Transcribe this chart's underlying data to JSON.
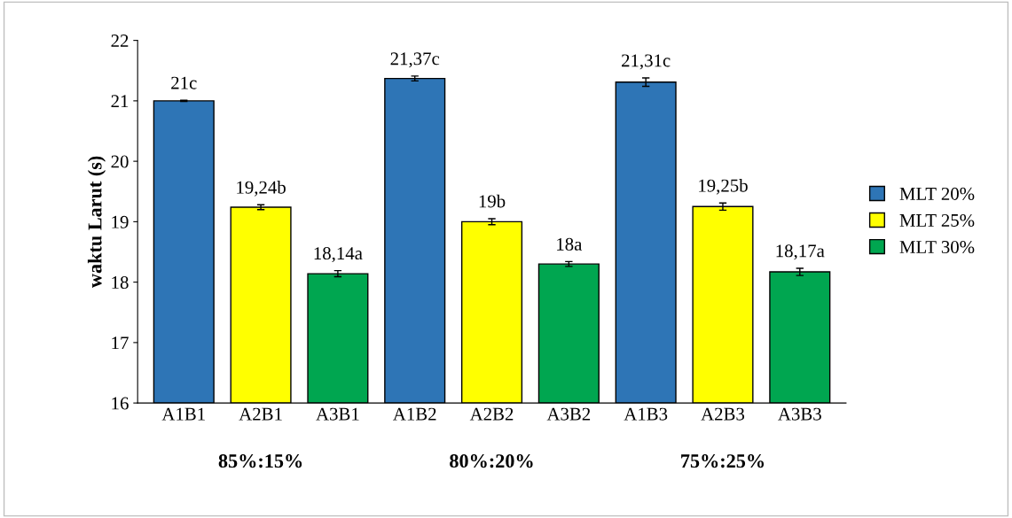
{
  "chart_data": {
    "type": "bar",
    "ylabel": "waktu Larut (s)",
    "categories": [
      "A1B1",
      "A2B1",
      "A3B1",
      "A1B2",
      "A2B2",
      "A3B2",
      "A1B3",
      "A2B3",
      "A3B3"
    ],
    "series": [
      {
        "name": "MLT 20%",
        "color": "#2e75b6",
        "values": [
          21,
          null,
          null,
          21.37,
          null,
          null,
          21.31,
          null,
          null
        ],
        "errors": [
          0.01,
          null,
          null,
          0.04,
          null,
          null,
          0.07,
          null,
          null
        ],
        "value_labels": [
          "21c",
          null,
          null,
          "21,37c",
          null,
          null,
          "21,31c",
          null,
          null
        ]
      },
      {
        "name": "MLT 25%",
        "color": "#ffff00",
        "values": [
          null,
          19.24,
          null,
          null,
          19,
          null,
          null,
          19.25,
          null
        ],
        "errors": [
          null,
          0.04,
          null,
          null,
          0.05,
          null,
          null,
          0.06,
          null
        ],
        "value_labels": [
          null,
          "19,24b",
          null,
          null,
          "19b",
          null,
          null,
          "19,25b",
          null
        ]
      },
      {
        "name": "MLT 30%",
        "color": "#00a650",
        "values": [
          null,
          null,
          18.14,
          null,
          null,
          18.3,
          null,
          null,
          18.17
        ],
        "errors": [
          null,
          null,
          0.05,
          null,
          null,
          0.04,
          null,
          null,
          0.06
        ],
        "value_labels": [
          null,
          null,
          "18,14a",
          null,
          null,
          "18a",
          null,
          null,
          "18,17a"
        ]
      }
    ],
    "annotations": [
      "85%:15%",
      "80%:20%",
      "75%:25%"
    ],
    "ylim": [
      16,
      22
    ],
    "yticks": [
      16,
      17,
      18,
      19,
      20,
      21,
      22
    ],
    "grid": false,
    "legend": "right"
  }
}
